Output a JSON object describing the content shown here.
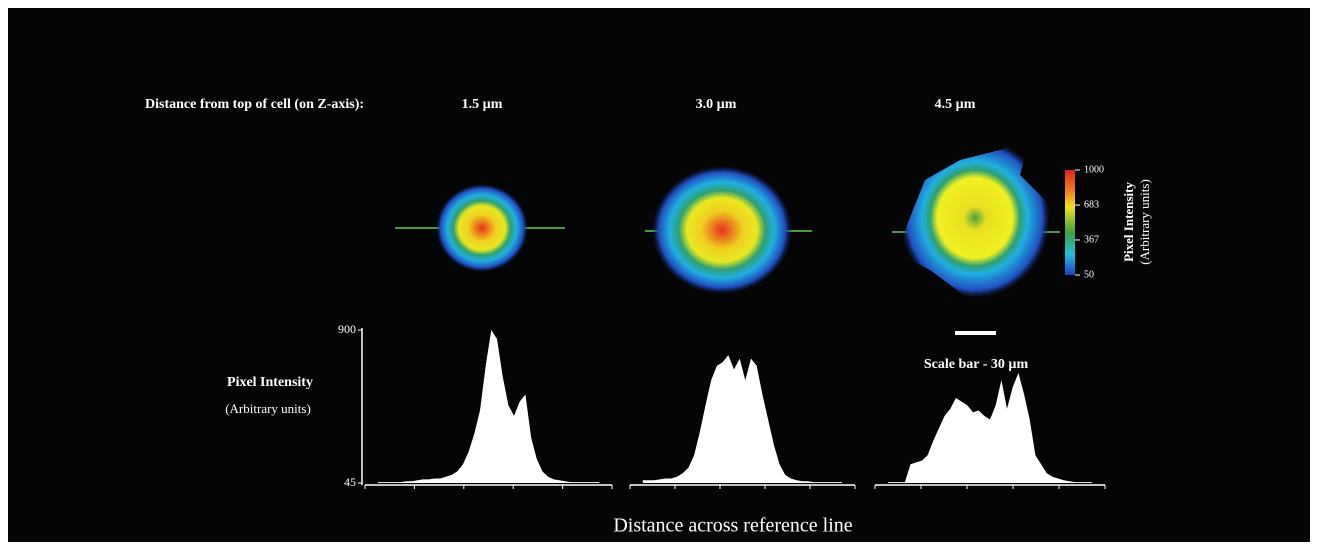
{
  "header": {
    "label": "Distance from top of cell (on Z-axis):",
    "depths": [
      "1.5 µm",
      "3.0 µm",
      "4.5 µm"
    ]
  },
  "colorbar": {
    "label": "Pixel Intensity",
    "sublabel": "(Arbitrary units)",
    "range": [
      50,
      1000
    ],
    "ticks": [
      1000,
      683,
      367,
      50
    ]
  },
  "scale_bar": "Scale bar - 30 µm",
  "profiles": {
    "y_label": "Pixel Intensity",
    "y_sublabel": "(Arbitrary units)",
    "x_label": "Distance across reference line",
    "ylim": [
      45,
      900
    ],
    "yticks": [
      900,
      45
    ],
    "series": [
      [
        50,
        50,
        50,
        50,
        50,
        55,
        55,
        60,
        65,
        65,
        70,
        70,
        80,
        90,
        110,
        150,
        220,
        320,
        450,
        700,
        900,
        850,
        640,
        480,
        420,
        500,
        540,
        300,
        180,
        110,
        80,
        65,
        60,
        55,
        50,
        50,
        50,
        50,
        50,
        50
      ],
      [
        60,
        60,
        60,
        65,
        70,
        70,
        80,
        100,
        130,
        200,
        330,
        480,
        620,
        700,
        720,
        760,
        680,
        740,
        620,
        740,
        700,
        540,
        400,
        260,
        150,
        90,
        70,
        60,
        55,
        55,
        50,
        50,
        50,
        50,
        50,
        50
      ],
      [
        50,
        50,
        50,
        50,
        150,
        160,
        170,
        200,
        280,
        350,
        420,
        460,
        520,
        500,
        480,
        440,
        450,
        420,
        400,
        480,
        620,
        460,
        580,
        660,
        540,
        400,
        200,
        150,
        100,
        80,
        70,
        60,
        55,
        50,
        50,
        50,
        50
      ]
    ]
  }
}
